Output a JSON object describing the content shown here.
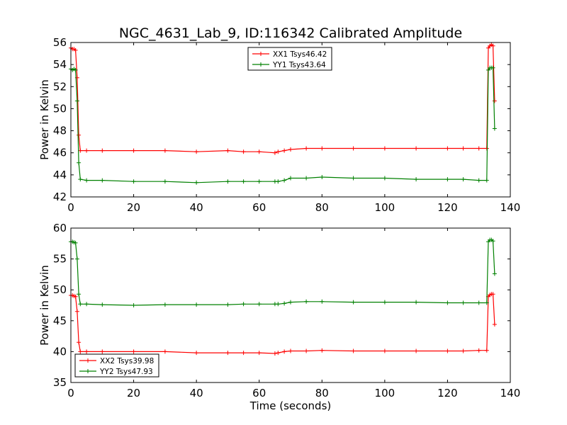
{
  "title": "NGC_4631_Lab_9, ID:116342 Calibrated Amplitude",
  "x_axis_label": "Time (seconds)",
  "chart_data": [
    {
      "type": "line",
      "ylabel": "Power in Kelvin",
      "xlim": [
        0,
        140
      ],
      "ylim": [
        42,
        56
      ],
      "xticks": [
        0,
        20,
        40,
        60,
        80,
        100,
        120,
        140
      ],
      "yticks": [
        42,
        44,
        46,
        48,
        50,
        52,
        54,
        56
      ],
      "grid": false,
      "legend_position": "top-center",
      "series": [
        {
          "name": "XX1 Tsys46.42",
          "color": "#ff0000",
          "marker": "+",
          "x": [
            0,
            0.5,
            1,
            1.5,
            2,
            2.5,
            3,
            5,
            10,
            20,
            30,
            40,
            50,
            55,
            60,
            65,
            66,
            68,
            70,
            75,
            80,
            90,
            100,
            110,
            120,
            125,
            130,
            132.5,
            133,
            133.5,
            134,
            134.5,
            135
          ],
          "y": [
            55.5,
            55.4,
            55.4,
            55.3,
            52.8,
            47.6,
            46.2,
            46.2,
            46.2,
            46.2,
            46.2,
            46.1,
            46.2,
            46.1,
            46.1,
            46.0,
            46.1,
            46.2,
            46.3,
            46.4,
            46.4,
            46.4,
            46.4,
            46.4,
            46.4,
            46.4,
            46.4,
            46.4,
            55.5,
            55.7,
            55.8,
            55.7,
            50.7
          ]
        },
        {
          "name": "YY1 Tsys43.64",
          "color": "#008000",
          "marker": "+",
          "x": [
            0,
            0.5,
            1,
            1.5,
            2,
            2.5,
            3,
            5,
            10,
            20,
            30,
            40,
            50,
            55,
            60,
            65,
            66,
            68,
            70,
            75,
            80,
            90,
            100,
            110,
            120,
            125,
            130,
            132.5,
            133,
            133.5,
            134,
            134.5,
            135
          ],
          "y": [
            53.6,
            53.5,
            53.6,
            53.5,
            50.7,
            45.1,
            43.6,
            43.5,
            43.5,
            43.4,
            43.4,
            43.3,
            43.4,
            43.4,
            43.4,
            43.4,
            43.4,
            43.5,
            43.7,
            43.7,
            43.8,
            43.7,
            43.7,
            43.6,
            43.6,
            43.6,
            43.5,
            43.5,
            53.5,
            53.7,
            53.7,
            53.7,
            48.2
          ]
        }
      ]
    },
    {
      "type": "line",
      "ylabel": "Power in Kelvin",
      "xlabel": "Time (seconds)",
      "xlim": [
        0,
        140
      ],
      "ylim": [
        35,
        60
      ],
      "xticks": [
        0,
        20,
        40,
        60,
        80,
        100,
        120,
        140
      ],
      "yticks": [
        35,
        40,
        45,
        50,
        55,
        60
      ],
      "grid": false,
      "legend_position": "bottom-left",
      "series": [
        {
          "name": "XX2 Tsys39.98",
          "color": "#ff0000",
          "marker": "+",
          "x": [
            0,
            0.5,
            1,
            1.5,
            2,
            2.5,
            3,
            5,
            10,
            20,
            30,
            40,
            50,
            55,
            60,
            65,
            66,
            68,
            70,
            75,
            80,
            90,
            100,
            110,
            120,
            125,
            130,
            132.5,
            133,
            133.5,
            134,
            134.5,
            135
          ],
          "y": [
            49.1,
            49.1,
            49.0,
            48.9,
            46.5,
            41.5,
            40.0,
            40.0,
            40.0,
            40.0,
            40.0,
            39.8,
            39.8,
            39.8,
            39.8,
            39.7,
            39.8,
            40.0,
            40.1,
            40.1,
            40.2,
            40.1,
            40.1,
            40.1,
            40.1,
            40.1,
            40.2,
            40.2,
            48.9,
            49.2,
            49.3,
            49.3,
            44.4
          ]
        },
        {
          "name": "YY2 Tsys47.93",
          "color": "#008000",
          "marker": "+",
          "x": [
            0,
            0.5,
            1,
            1.5,
            2,
            2.5,
            3,
            5,
            10,
            20,
            30,
            40,
            50,
            55,
            60,
            65,
            66,
            68,
            70,
            75,
            80,
            90,
            100,
            110,
            120,
            125,
            130,
            132.5,
            133,
            133.5,
            134,
            134.5,
            135
          ],
          "y": [
            57.8,
            57.8,
            57.7,
            57.6,
            55.0,
            49.3,
            47.7,
            47.7,
            47.6,
            47.5,
            47.6,
            47.6,
            47.6,
            47.7,
            47.7,
            47.7,
            47.7,
            47.8,
            48.0,
            48.1,
            48.1,
            48.0,
            48.0,
            48.0,
            47.9,
            47.9,
            47.9,
            47.9,
            57.8,
            58.1,
            58.1,
            57.9,
            52.6
          ]
        }
      ]
    }
  ]
}
